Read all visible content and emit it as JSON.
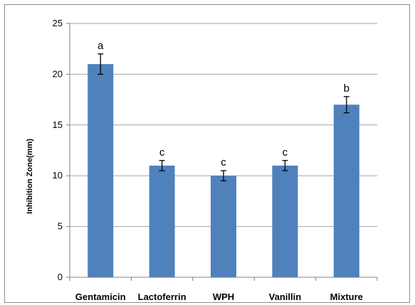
{
  "chart_data": {
    "type": "bar",
    "title": "",
    "xlabel": "",
    "ylabel": "Inhibition Zone(mm)",
    "ylim": [
      0,
      25
    ],
    "yticks": [
      0,
      5,
      10,
      15,
      20,
      25
    ],
    "categories": [
      "Gentamicin",
      "Lactoferrin",
      "WPH",
      "Vanillin",
      "Mixture"
    ],
    "values": [
      21,
      11,
      10,
      11,
      17
    ],
    "errors": [
      1.0,
      0.5,
      0.5,
      0.5,
      0.8
    ],
    "significance_labels": [
      "a",
      "c",
      "c",
      "c",
      "b"
    ],
    "grid": true,
    "legend": "none",
    "bar_color": "#4f81bd",
    "grid_color": "#a6a6a6"
  }
}
